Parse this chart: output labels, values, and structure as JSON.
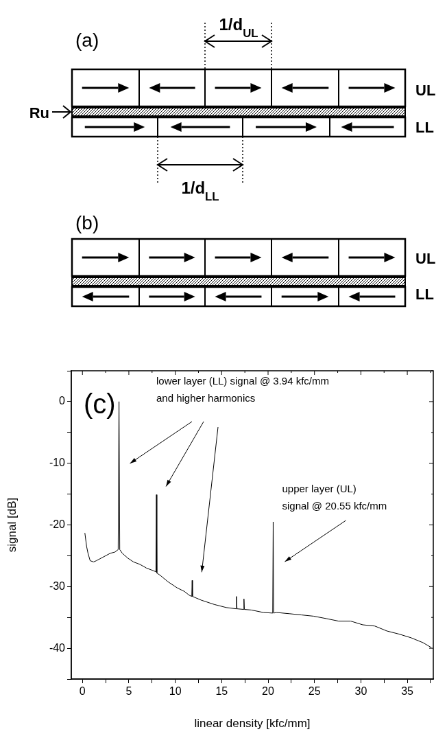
{
  "chart_data": {
    "type": "line",
    "xlabel": "linear density [kfc/mm]",
    "ylabel": "signal [dB]",
    "x": [
      0.26,
      0.45,
      0.6,
      0.83,
      1.2,
      1.5,
      2.0,
      2.5,
      3.0,
      3.5,
      3.85,
      3.94,
      4.02,
      4.3,
      4.9,
      5.5,
      6.2,
      6.9,
      7.6,
      7.92,
      7.97,
      8.02,
      8.4,
      9.2,
      10.2,
      11.0,
      11.5,
      11.78,
      11.82,
      11.86,
      12.8,
      14.2,
      15.5,
      16.55,
      16.6,
      16.65,
      17.35,
      17.4,
      17.45,
      18.2,
      19.5,
      20.5,
      20.55,
      20.6,
      20.9,
      22.3,
      23.6,
      24.9,
      26.3,
      27.6,
      28.9,
      30.2,
      31.5,
      32.8,
      34.1,
      35.4,
      36.7,
      37.6
    ],
    "series": [
      {
        "color": "#000000",
        "values": [
          -21.3,
          -23.5,
          -24.6,
          -25.8,
          -26.0,
          -25.8,
          -25.4,
          -25.0,
          -24.6,
          -24.4,
          -24.0,
          0,
          -24.0,
          -24.6,
          -25.4,
          -26.0,
          -26.4,
          -27.0,
          -27.4,
          -27.6,
          -15.1,
          -27.8,
          -28.2,
          -29.2,
          -30.2,
          -30.8,
          -31.4,
          -31.6,
          -29.0,
          -31.6,
          -32.2,
          -32.9,
          -33.4,
          -33.6,
          -31.6,
          -33.6,
          -33.7,
          -32.0,
          -33.7,
          -33.8,
          -34.2,
          -34.3,
          -19.5,
          -34.3,
          -34.2,
          -34.4,
          -34.6,
          -34.8,
          -35.2,
          -35.6,
          -35.6,
          -36.2,
          -36.4,
          -37.2,
          -37.7,
          -38.3,
          -39.1,
          -39.9
        ]
      }
    ],
    "xlim": [
      -1.2,
      37.8
    ],
    "xticks": [
      0,
      {
        "value": 2.5,
        "label": null
      },
      5,
      {
        "value": 7.5,
        "label": null
      },
      10,
      {
        "value": 12.5,
        "label": null
      },
      15,
      {
        "value": 17.5,
        "label": null
      },
      20,
      {
        "value": 22.5,
        "label": null
      },
      25,
      {
        "value": 27.5,
        "label": null
      },
      30,
      {
        "value": 32.5,
        "label": null
      },
      35,
      {
        "value": 37.5,
        "label": null
      }
    ],
    "ylim": [
      -45,
      5
    ],
    "yticks": [
      {
        "value": -45,
        "label": null
      },
      -40,
      {
        "value": -35,
        "label": null
      },
      -30,
      {
        "value": -25,
        "label": null
      },
      -20,
      {
        "value": -15,
        "label": null
      },
      -10,
      {
        "value": -5,
        "label": null
      },
      0,
      {
        "value": 5,
        "label": null
      }
    ],
    "grid": false,
    "legend": false,
    "marker": "none",
    "line_style": "solid",
    "annotations": [
      "(a)",
      "1/d$_{UL}$",
      "1/d$_{LL}$",
      "UL",
      "LL",
      "Ru",
      "(b)",
      "UL",
      "LL",
      "(c)",
      "lower layer (LL) signal @ 3.94 kfc/mm\nand higher harmonics",
      {
        "text": "upper layer (UL)\nsignal @ 20.55 kfc/mm",
        "x": 20.55,
        "y": -19.5
      }
    ]
  }
}
